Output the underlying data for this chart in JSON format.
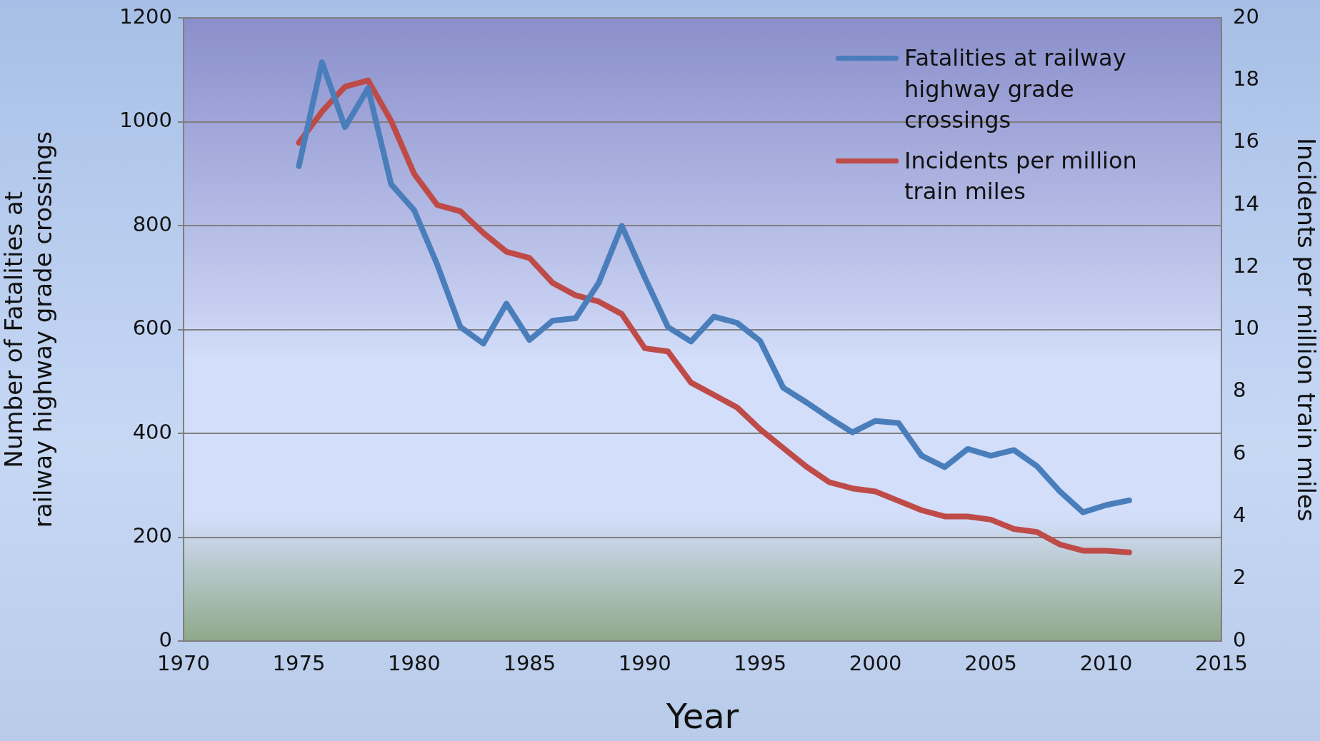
{
  "chart_data": {
    "type": "line",
    "xlabel": "Year",
    "ylabel": "Number of Fatalities at railway highway grade crossings",
    "y2label": "Incidents per million train miles",
    "x": [
      1975,
      1976,
      1977,
      1978,
      1979,
      1980,
      1981,
      1982,
      1983,
      1984,
      1985,
      1986,
      1987,
      1988,
      1989,
      1990,
      1991,
      1992,
      1993,
      1994,
      1995,
      1996,
      1997,
      1998,
      1999,
      2000,
      2001,
      2002,
      2003,
      2004,
      2005,
      2006,
      2007,
      2008,
      2009,
      2010,
      2011
    ],
    "series": [
      {
        "name": "Fatalities at railway highway grade crossings",
        "color": "#4a7ebb",
        "values": [
          915,
          1115,
          990,
          1065,
          880,
          830,
          725,
          605,
          573,
          650,
          580,
          617,
          622,
          690,
          800,
          700,
          605,
          577,
          625,
          613,
          578,
          488,
          460,
          430,
          402,
          424,
          420,
          357,
          335,
          370,
          357,
          368,
          337,
          288,
          248,
          262,
          271
        ]
      },
      {
        "name": "Incidents per million train miles",
        "color": "#be4b48",
        "axis": "y2",
        "values": [
          16.0,
          17.0,
          17.8,
          18.0,
          16.7,
          15.0,
          14.0,
          13.8,
          13.1,
          12.5,
          12.3,
          11.5,
          11.1,
          10.9,
          10.5,
          9.4,
          9.3,
          8.3,
          7.9,
          7.5,
          6.8,
          6.2,
          5.6,
          5.1,
          4.9,
          4.8,
          4.5,
          4.2,
          4.0,
          4.0,
          3.9,
          3.6,
          3.5,
          3.1,
          2.9,
          2.9,
          2.85
        ]
      }
    ],
    "xlim": [
      1970,
      2015
    ],
    "xticks": [
      1970,
      1975,
      1980,
      1985,
      1990,
      1995,
      2000,
      2005,
      2010,
      2015
    ],
    "ylim": [
      0,
      1200
    ],
    "yticks": [
      0,
      200,
      400,
      600,
      800,
      1000,
      1200
    ],
    "y2lim": [
      0,
      20
    ],
    "y2ticks": [
      0,
      2,
      4,
      6,
      8,
      10,
      12,
      14,
      16,
      18,
      20
    ],
    "grid": "y",
    "legend": "top right",
    "marker": "none",
    "line_style": "solid"
  }
}
